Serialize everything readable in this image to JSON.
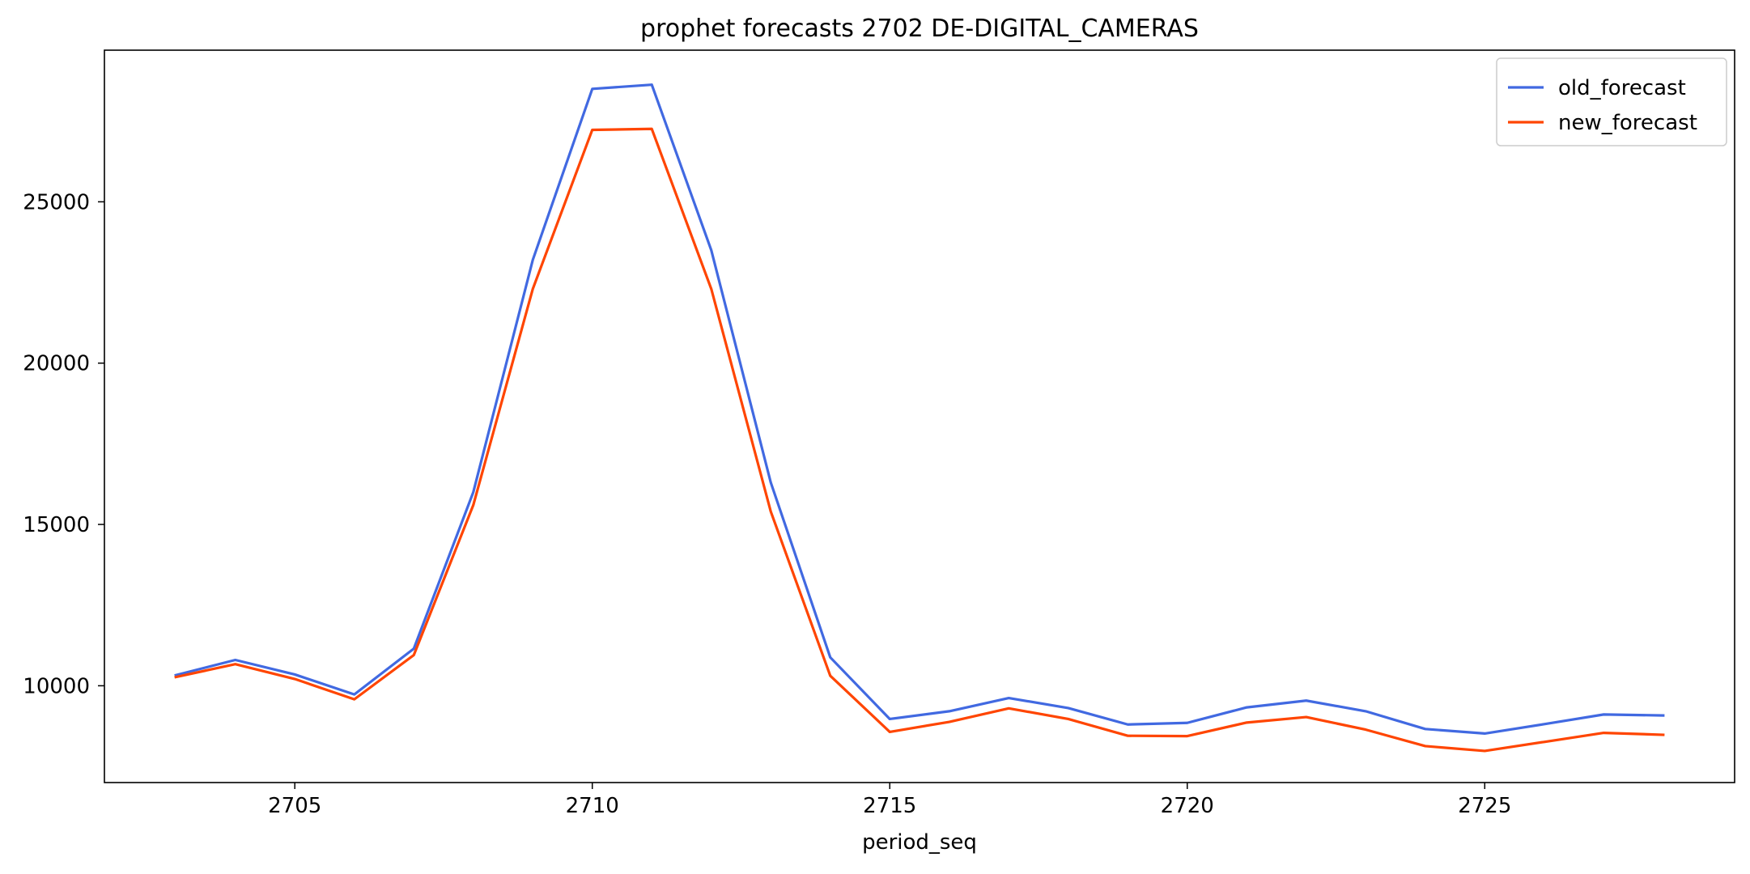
{
  "chart_data": {
    "type": "line",
    "title": "prophet forecasts 2702 DE-DIGITAL_CAMERAS",
    "xlabel": "period_seq",
    "ylabel": "",
    "x": [
      2703,
      2704,
      2705,
      2706,
      2707,
      2708,
      2709,
      2710,
      2711,
      2712,
      2713,
      2714,
      2715,
      2716,
      2717,
      2718,
      2719,
      2720,
      2721,
      2722,
      2723,
      2724,
      2725,
      2726,
      2727,
      2728
    ],
    "series": [
      {
        "name": "old_forecast",
        "color": "#4169e1",
        "values": [
          10330,
          10800,
          10350,
          9730,
          11150,
          16000,
          23200,
          28500,
          28630,
          23500,
          16300,
          10880,
          8970,
          9210,
          9620,
          9310,
          8800,
          8850,
          9330,
          9540,
          9210,
          8660,
          8520,
          8810,
          9110,
          9080
        ]
      },
      {
        "name": "new_forecast",
        "color": "#ff4500",
        "values": [
          10270,
          10670,
          10210,
          9580,
          10950,
          15600,
          22300,
          27230,
          27260,
          22300,
          15400,
          10310,
          8570,
          8880,
          9300,
          8970,
          8450,
          8440,
          8860,
          9030,
          8640,
          8130,
          7980,
          8260,
          8540,
          8480
        ]
      }
    ],
    "xlim": [
      2701.8,
      2729.2
    ],
    "ylim": [
      7000,
      29700
    ],
    "xticks": [
      2705,
      2710,
      2715,
      2720,
      2725
    ],
    "yticks": [
      10000,
      15000,
      20000,
      25000
    ],
    "grid": false,
    "legend": "top-right"
  }
}
